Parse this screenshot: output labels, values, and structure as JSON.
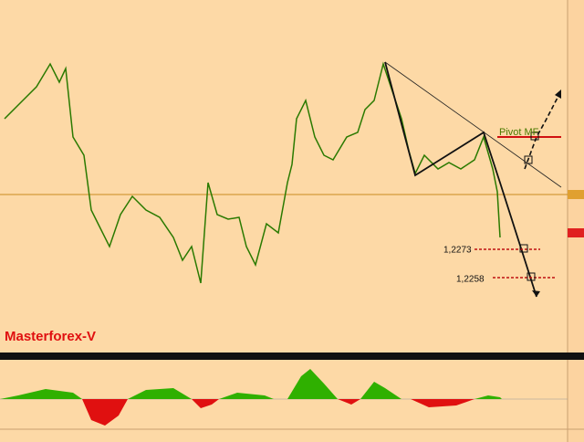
{
  "chart": {
    "brand": "Masterforex-V",
    "pivot_label": "Pivot MF",
    "levels": [
      "1,2273",
      "1,2258"
    ]
  }
}
